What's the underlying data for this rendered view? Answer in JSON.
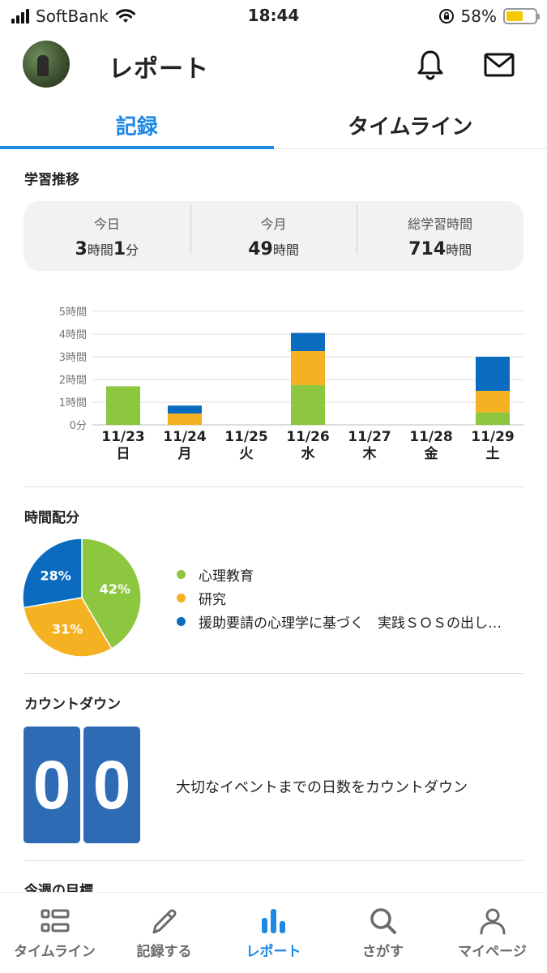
{
  "status_bar": {
    "carrier": "SoftBank",
    "time": "18:44",
    "battery": "58%",
    "battery_level": 0.58
  },
  "header": {
    "title": "レポート",
    "bell_icon": "bell-icon",
    "mail_icon": "mail-icon"
  },
  "tabs": [
    {
      "label": "記録",
      "active": true
    },
    {
      "label": "タイムライン",
      "active": false
    }
  ],
  "study_trend": {
    "title": "学習推移",
    "stats": [
      {
        "label": "今日",
        "value": [
          {
            "n": "3",
            "u": "時間"
          },
          {
            "n": "1",
            "u": "分"
          }
        ]
      },
      {
        "label": "今月",
        "value": [
          {
            "n": "49",
            "u": "時間"
          }
        ]
      },
      {
        "label": "総学習時間",
        "value": [
          {
            "n": "714",
            "u": "時間"
          }
        ]
      }
    ]
  },
  "chart_data": [
    {
      "type": "bar",
      "stacked": true,
      "categories": [
        "11/23",
        "11/24",
        "11/25",
        "11/26",
        "11/27",
        "11/28",
        "11/29"
      ],
      "weekdays": [
        "日",
        "月",
        "火",
        "水",
        "木",
        "金",
        "土"
      ],
      "y_ticks": [
        "0分",
        "1時間",
        "2時間",
        "3時間",
        "4時間",
        "5時間"
      ],
      "ylim": [
        0,
        5
      ],
      "grid": true,
      "series": [
        {
          "name": "心理教育",
          "color": "#8dc63f",
          "values": [
            1.7,
            0,
            0,
            1.75,
            0,
            0,
            0.55
          ]
        },
        {
          "name": "研究",
          "color": "#f4b223",
          "values": [
            0,
            0.5,
            0,
            1.5,
            0,
            0,
            0.95
          ]
        },
        {
          "name": "援助要請の心理学に基づく　実践ＳＯＳの出し…",
          "color": "#0a6bbf",
          "values": [
            0,
            0.35,
            0,
            0.8,
            0,
            0,
            1.5
          ]
        }
      ]
    },
    {
      "type": "pie",
      "title": "時間配分",
      "slices": [
        {
          "name": "心理教育",
          "value": 42,
          "label": "42%",
          "color": "#8dc63f"
        },
        {
          "name": "研究",
          "value": 31,
          "label": "31%",
          "color": "#f4b223"
        },
        {
          "name": "援助要請の心理学に基づく　実践ＳＯＳの出し…",
          "value": 28,
          "label": "28%",
          "color": "#0a6bbf"
        }
      ]
    }
  ],
  "countdown": {
    "title": "カウントダウン",
    "digits": [
      "0",
      "0"
    ],
    "text": "大切なイベントまでの日数をカウントダウン",
    "color": "#2d6bb5"
  },
  "next_section": {
    "title": "今週の目標"
  },
  "tabbar": [
    {
      "label": "タイムライン",
      "icon": "list-icon",
      "active": false
    },
    {
      "label": "記録する",
      "icon": "pencil-icon",
      "active": false
    },
    {
      "label": "レポート",
      "icon": "bar-chart-icon",
      "active": true
    },
    {
      "label": "さがす",
      "icon": "search-icon",
      "active": false
    },
    {
      "label": "マイページ",
      "icon": "person-icon",
      "active": false
    }
  ],
  "accent_color": "#1e88e5"
}
